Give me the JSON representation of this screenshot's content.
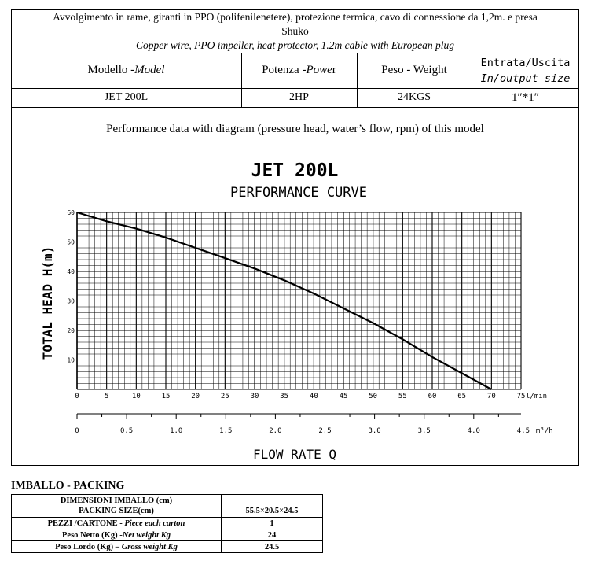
{
  "header": {
    "line1": "Avvolgimento in rame, giranti in PPO (polifenilenetere), protezione termica, cavo di connessione da 1,2m. e presa",
    "line2": "Shuko",
    "line3": "Copper wire, PPO impeller, heat protector, 1.2m cable with European plug"
  },
  "spec_table": {
    "model_it": "Modello - ",
    "model_en": "Model",
    "power_it": "Potenza - ",
    "power_en": "Powe",
    "power_tail": "r",
    "weight_label": "Peso - Weight",
    "io_it": "Entrata/Uscita",
    "io_en": "In/output size",
    "model_value": "JET 200L",
    "power_value": "2HP",
    "weight_value": "24KGS",
    "io_value": "1″*1″"
  },
  "performance": {
    "intro": "Performance  data with diagram (pressure head, water’s flow, rpm) of this model"
  },
  "chart_data": {
    "type": "line",
    "title": "JET 200L",
    "subtitle": "PERFORMANCE CURVE",
    "ylabel": "TOTAL HEAD  H(m)",
    "xlabel": "FLOW RATE Q",
    "x_unit": "l/min",
    "x2_unit": "m³/h",
    "xlim": [
      0,
      75
    ],
    "ylim": [
      0,
      60
    ],
    "x_ticks": [
      0,
      5,
      10,
      15,
      20,
      25,
      30,
      35,
      40,
      45,
      50,
      55,
      60,
      65,
      70,
      75
    ],
    "y_ticks": [
      10,
      20,
      30,
      40,
      50,
      60
    ],
    "x2_ticks": [
      "0",
      "0.5",
      "1.0",
      "1.5",
      "2.0",
      "2.5",
      "3.0",
      "3.5",
      "4.0",
      "4.5"
    ],
    "grid": true,
    "series": [
      {
        "x": [
          0,
          5,
          10,
          15,
          20,
          25,
          30,
          35,
          40,
          45,
          50,
          55,
          60,
          65,
          70
        ],
        "y": [
          60,
          57,
          54.5,
          51.5,
          48,
          44.5,
          41,
          37,
          32.5,
          27.5,
          22.5,
          17,
          11,
          5.5,
          0
        ]
      }
    ]
  },
  "packing": {
    "title": "IMBALLO - PACKING",
    "rows": [
      {
        "label": "DIMENSIONI IMBALLO (cm)\nPACKING SIZE(cm)",
        "value": "55.5×20.5×24.5"
      },
      {
        "label": "PEZZI /CARTONE - ",
        "label_en": "Piece each carton",
        "value": "1"
      },
      {
        "label": "Peso Netto (Kg) -",
        "label_en": "Net  weight Kg",
        "value": "24"
      },
      {
        "label": "Peso Lordo (Kg) – ",
        "label_en": "Gross weight Kg",
        "value": "24.5"
      }
    ]
  }
}
